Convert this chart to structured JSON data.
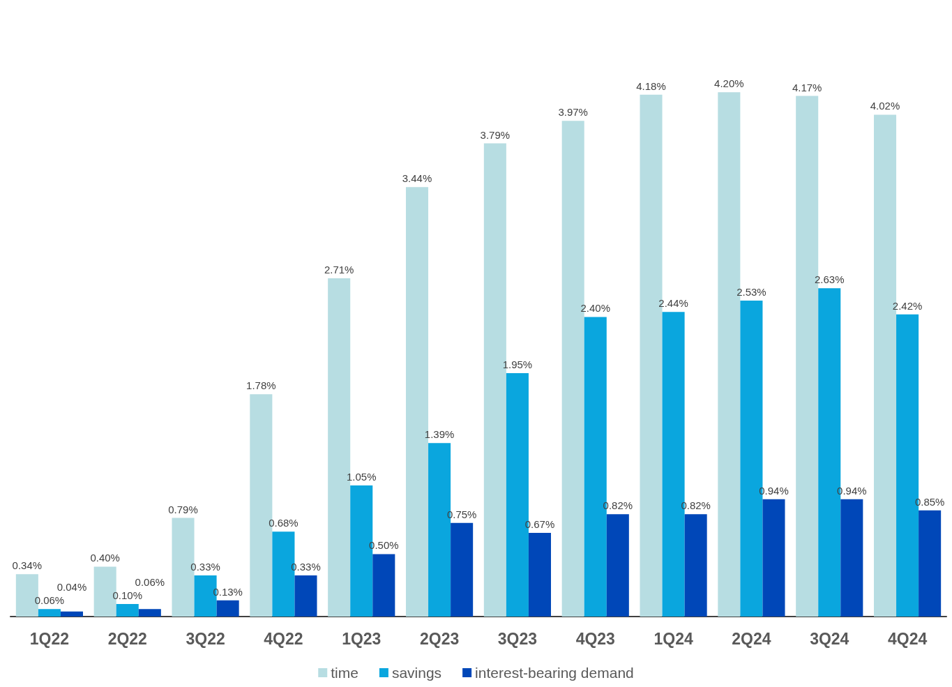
{
  "chart_data": {
    "type": "bar",
    "categories": [
      "1Q22",
      "2Q22",
      "3Q22",
      "4Q22",
      "1Q23",
      "2Q23",
      "3Q23",
      "4Q23",
      "1Q24",
      "2Q24",
      "3Q24",
      "4Q24"
    ],
    "series": [
      {
        "name": "time",
        "color": "#b7dde2",
        "values": [
          0.34,
          0.4,
          0.79,
          1.78,
          2.71,
          3.44,
          3.79,
          3.97,
          4.18,
          4.2,
          4.17,
          4.02
        ],
        "value_labels": [
          "0.34%",
          "0.40%",
          "0.79%",
          "1.78%",
          "2.71%",
          "3.44%",
          "3.79%",
          "3.97%",
          "4.18%",
          "4.20%",
          "4.17%",
          "4.02%"
        ]
      },
      {
        "name": "savings",
        "color": "#0aa6de",
        "values": [
          0.06,
          0.1,
          0.33,
          0.68,
          1.05,
          1.39,
          1.95,
          2.4,
          2.44,
          2.53,
          2.63,
          2.42
        ],
        "value_labels": [
          "0.06%",
          "0.10%",
          "0.33%",
          "0.68%",
          "1.05%",
          "1.39%",
          "1.95%",
          "2.40%",
          "2.44%",
          "2.53%",
          "2.63%",
          "2.42%"
        ]
      },
      {
        "name": "interest-bearing demand",
        "color": "#0047b8",
        "values": [
          0.04,
          0.06,
          0.13,
          0.33,
          0.5,
          0.75,
          0.67,
          0.82,
          0.82,
          0.94,
          0.94,
          0.85
        ],
        "value_labels": [
          "0.04%",
          "0.06%",
          "0.13%",
          "0.33%",
          "0.50%",
          "0.75%",
          "0.67%",
          "0.82%",
          "0.82%",
          "0.94%",
          "0.94%",
          "0.85%"
        ]
      }
    ],
    "legend": "bottom"
  }
}
